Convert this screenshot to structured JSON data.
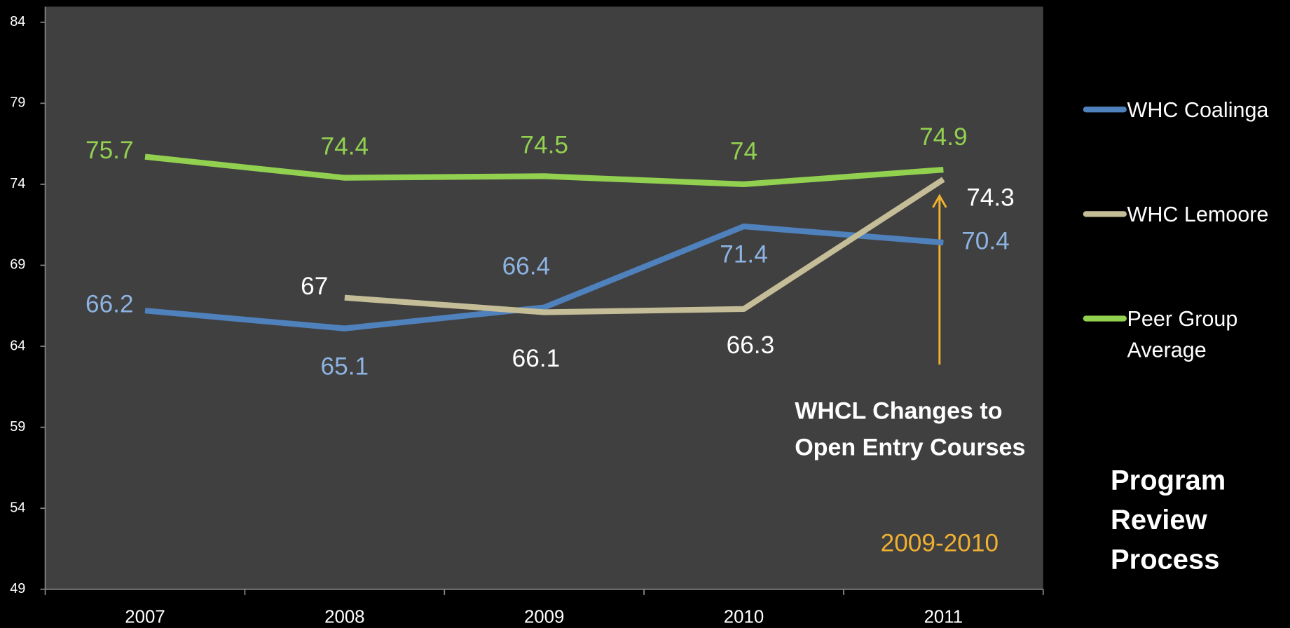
{
  "chart_data": {
    "type": "line",
    "categories": [
      "2007",
      "2008",
      "2009",
      "2010",
      "2011"
    ],
    "series": [
      {
        "name": "WHC Coalinga",
        "color": "#4f81bd",
        "label_color": "#8db3e2",
        "values": [
          66.2,
          65.1,
          66.4,
          71.4,
          70.4
        ]
      },
      {
        "name": "WHC Lemoore",
        "color": "#c4bd97",
        "label_color": "#ffffff",
        "values": [
          null,
          67,
          66.1,
          66.3,
          74.3
        ]
      },
      {
        "name": "Peer Group Average",
        "color": "#92d050",
        "label_color": "#92d050",
        "values": [
          75.7,
          74.4,
          74.5,
          74,
          74.9
        ]
      }
    ],
    "ylim": [
      49,
      84
    ],
    "yticks": [
      49,
      54,
      59,
      64,
      69,
      74,
      79,
      84
    ],
    "legend": "right",
    "annotations": {
      "note": "WHCL Changes to Open Entry Courses",
      "period": "2009-2010",
      "side": "Program Review Process"
    }
  }
}
